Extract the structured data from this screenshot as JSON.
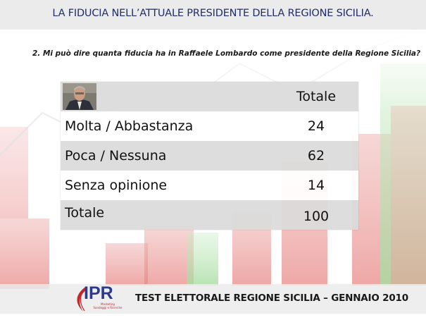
{
  "header": {
    "title": "LA FIDUCIA NELL’ATTUALE PRESIDENTE DELLA REGIONE SICILIA."
  },
  "question": "2. Mi può dire quanta fiducia ha in Raffaele Lombardo come presidente della Regione Sicilia?",
  "table": {
    "column_header": "Totale",
    "rows": [
      {
        "label": "Molta  / Abbastanza",
        "value": "24"
      },
      {
        "label": "Poca / Nessuna",
        "value": "62"
      },
      {
        "label": "Senza opinione",
        "value": "14"
      },
      {
        "label": "Totale",
        "value": "100"
      }
    ]
  },
  "footer": {
    "logo_text": "IPR",
    "logo_subtext_line1": "Marketing",
    "logo_subtext_line2": "Sondaggi e Ricerche",
    "text": "TEST ELETTORALE REGIONE SICILIA – GENNAIO 2010"
  },
  "colors": {
    "title": "#1f2d6e",
    "logo": "#2a3a8f",
    "logo_accent": "#c0282d",
    "bar_red": "#e98a88",
    "bar_green": "#a7dca1"
  }
}
